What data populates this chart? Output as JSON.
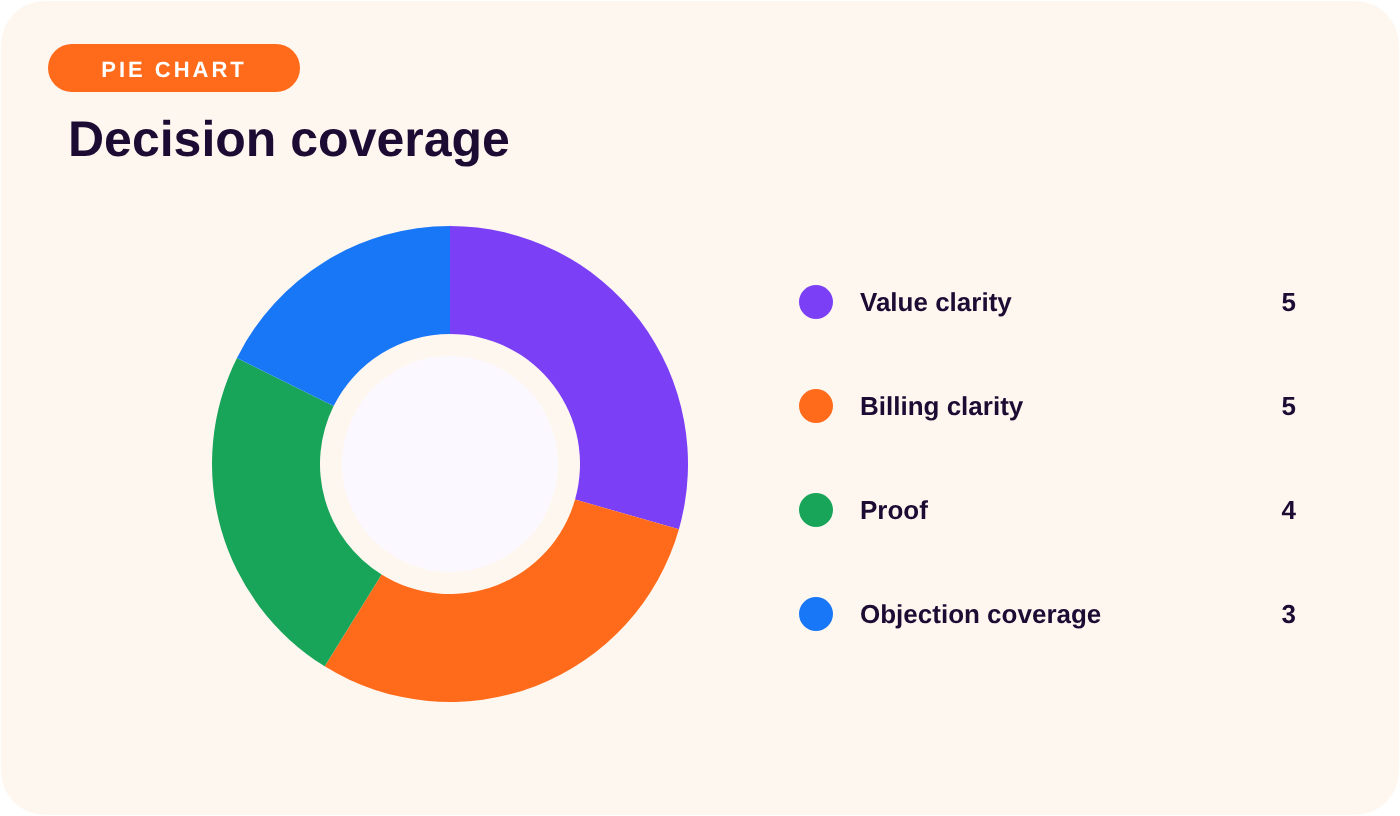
{
  "chart_data": {
    "type": "donut",
    "title": "Decision coverage",
    "annotations": [
      "PIE CHART"
    ],
    "categories": [
      "Value clarity",
      "Billing clarity",
      "Proof",
      "Objection coverage"
    ],
    "values": [
      5,
      5,
      4,
      3
    ],
    "colors": [
      "#7b3ff6",
      "#ff6b1a",
      "#18a55a",
      "#1877f7"
    ],
    "data_labels": true,
    "legend": "right"
  }
}
